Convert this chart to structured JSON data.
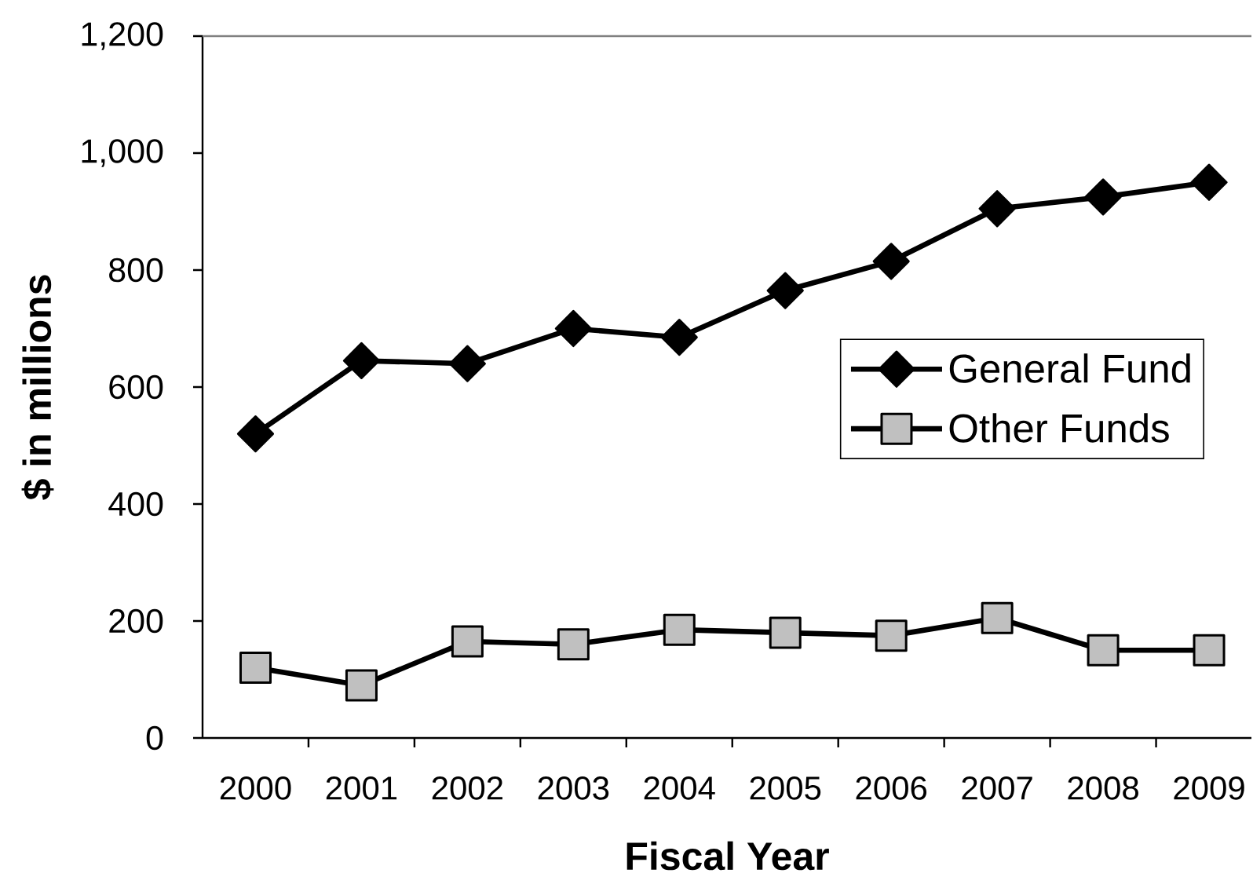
{
  "chart_data": {
    "type": "line",
    "xlabel": "Fiscal Year",
    "ylabel": "$ in millions",
    "categories": [
      "2000",
      "2001",
      "2002",
      "2003",
      "2004",
      "2005",
      "2006",
      "2007",
      "2008",
      "2009"
    ],
    "series": [
      {
        "name": "General Fund",
        "color": "#000000",
        "marker": "diamond",
        "values": [
          520,
          645,
          640,
          700,
          685,
          765,
          815,
          905,
          925,
          950
        ]
      },
      {
        "name": "Other Funds",
        "color": "#c0c0c0",
        "marker": "square",
        "values": [
          120,
          90,
          165,
          160,
          185,
          180,
          175,
          205,
          150,
          150
        ]
      }
    ],
    "ylim": [
      0,
      1200
    ],
    "yticks": [
      0,
      200,
      400,
      600,
      800,
      {
        "value": 1000,
        "label": "1,000"
      },
      {
        "value": 1200,
        "label": "1,200"
      }
    ],
    "legend": "right",
    "line_style": "solid"
  }
}
